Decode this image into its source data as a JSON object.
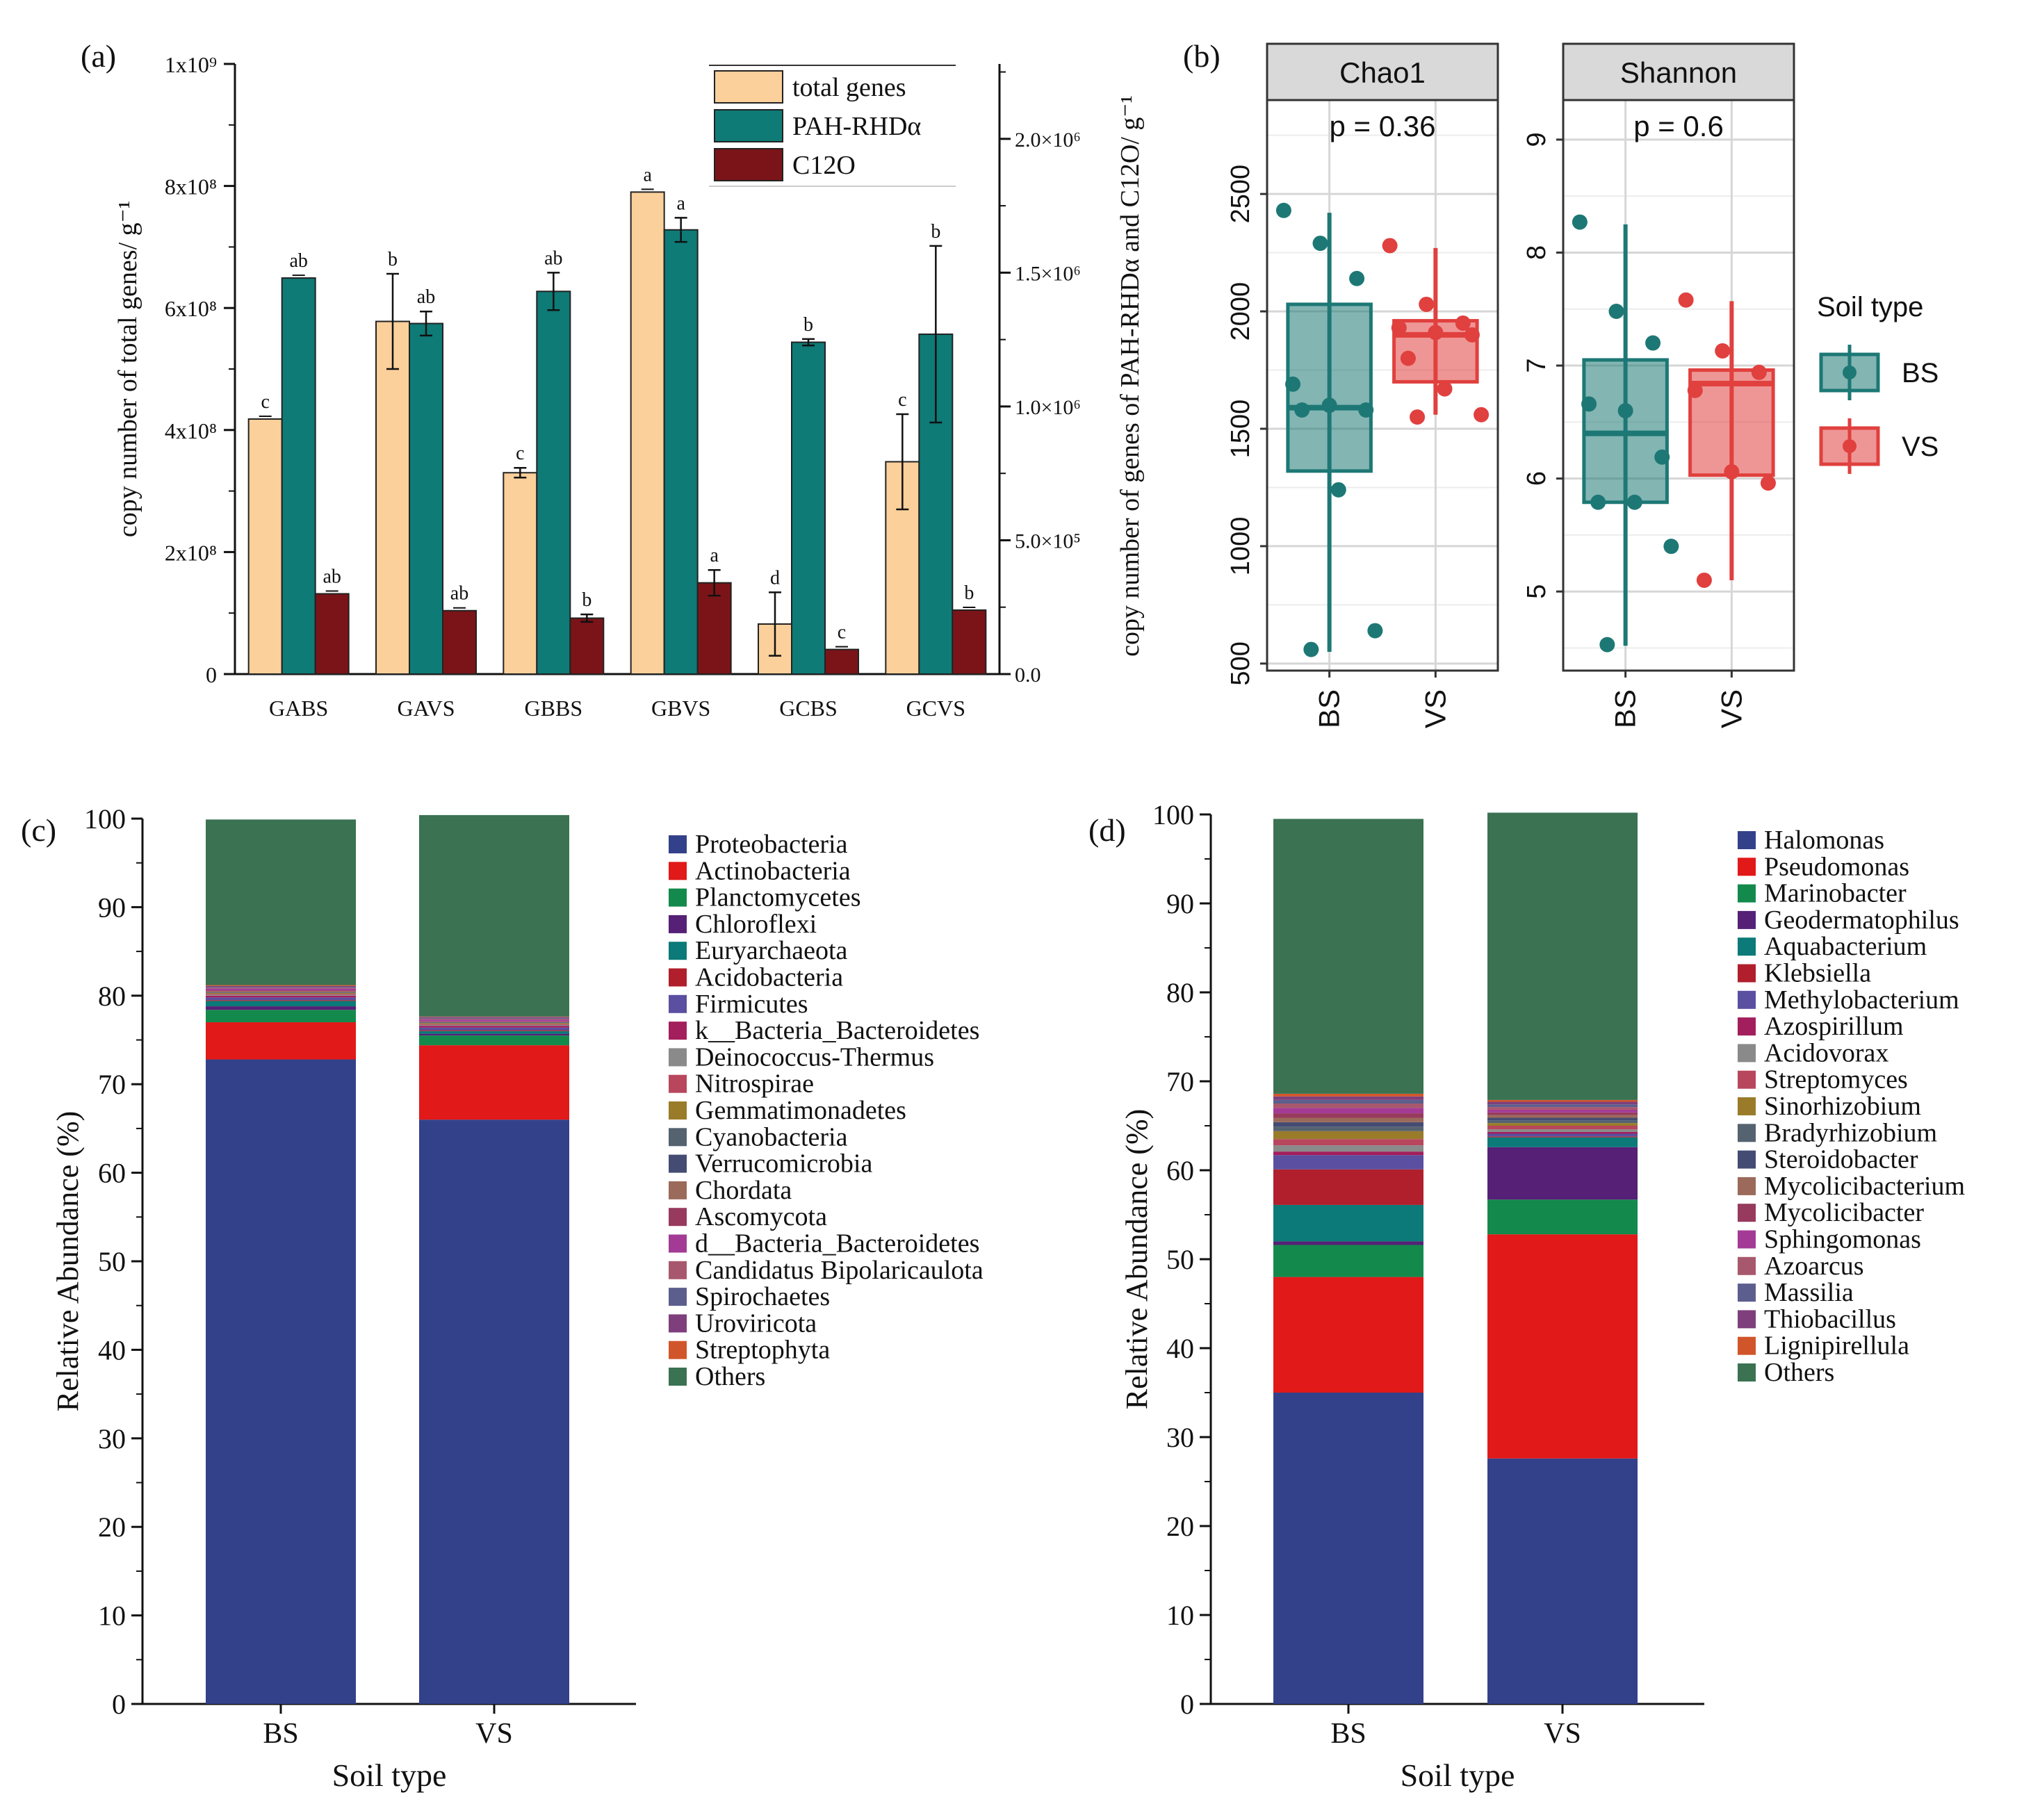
{
  "chart_data": [
    {
      "panel": "(a)",
      "type": "bar",
      "ylabel": "copy number of total genes/ g⁻¹",
      "y2label": "copy number of genes of PAH-RHDα and C12O/ g⁻¹",
      "ylim": [
        0,
        1000000000
      ],
      "y2lim": [
        0,
        2280000
      ],
      "yticks": [
        "0",
        "2x10⁸",
        "4x10⁸",
        "6x10⁸",
        "8x10⁸",
        "1x10⁹"
      ],
      "y2ticks": [
        "0.0",
        "5.0×10⁵",
        "1.0×10⁶",
        "1.5×10⁶",
        "2.0×10⁶"
      ],
      "categories": [
        "GABS",
        "GAVS",
        "GBBS",
        "GBVS",
        "GCBS",
        "GCVS"
      ],
      "series": [
        {
          "name": "total genes",
          "axis": "left",
          "color": "#fbd09b",
          "values": [
            418000000,
            578000000,
            330000000,
            790000000,
            82000000,
            348000000
          ],
          "errors": [
            0,
            78000000,
            8000000,
            0,
            52000000,
            78000000
          ],
          "letters": [
            "c",
            "b",
            "c",
            "a",
            "d",
            "c"
          ]
        },
        {
          "name": "PAH-RHDα",
          "axis": "right",
          "color": "#0e7b77",
          "values": [
            1480000,
            1310000,
            1430000,
            1660000,
            1240000,
            1270000
          ],
          "errors": [
            0,
            45000,
            70000,
            45000,
            12000,
            330000
          ],
          "letters": [
            "ab",
            "ab",
            "ab",
            "a",
            "b",
            "b"
          ]
        },
        {
          "name": "C12O",
          "axis": "right",
          "color": "#7b1418",
          "values": [
            300000,
            237000,
            209000,
            341000,
            92000,
            239000
          ],
          "errors": [
            0,
            0,
            14000,
            48000,
            0,
            0
          ],
          "letters": [
            "ab",
            "ab",
            "b",
            "a",
            "c",
            "b"
          ]
        }
      ]
    },
    {
      "panel": "(b)",
      "type": "box",
      "legend_title": "Soil type",
      "groups": [
        "BS",
        "VS"
      ],
      "colors": {
        "BS": "#1d7875",
        "VS": "#e0403e"
      },
      "subplots": [
        {
          "title": "Chao1",
          "p_text": "p = 0.36",
          "ylim": [
            470,
            2900
          ],
          "yticks": [
            500,
            1000,
            1500,
            2000,
            2500
          ],
          "boxes": {
            "BS": {
              "min": 550,
              "q1": 1320,
              "median": 1590,
              "q3": 2030,
              "max": 2420
            },
            "VS": {
              "min": 1560,
              "q1": 1700,
              "median": 1900,
              "q3": 1960,
              "max": 2270
            }
          },
          "points": {
            "BS": [
              2430,
              2290,
              2140,
              1690,
              1600,
              1580,
              1580,
              1240,
              640,
              560
            ],
            "VS": [
              2280,
              2030,
              1950,
              1930,
              1910,
              1900,
              1800,
              1670,
              1560,
              1550
            ]
          }
        },
        {
          "title": "Shannon",
          "p_text": "p = 0.6",
          "ylim": [
            4.3,
            9.35
          ],
          "yticks": [
            5,
            6,
            7,
            8,
            9
          ],
          "boxes": {
            "BS": {
              "min": 4.52,
              "q1": 5.79,
              "median": 6.4,
              "q3": 7.05,
              "max": 8.25
            },
            "VS": {
              "min": 5.1,
              "q1": 6.03,
              "median": 6.84,
              "q3": 6.96,
              "max": 7.57
            }
          },
          "points": {
            "BS": [
              8.27,
              7.48,
              7.2,
              6.66,
              6.6,
              6.19,
              5.79,
              5.79,
              5.4,
              4.53
            ],
            "VS": [
              7.58,
              7.13,
              6.94,
              6.78,
              6.06,
              5.96,
              5.1
            ]
          }
        }
      ]
    },
    {
      "panel": "(c)",
      "type": "stacked_bar",
      "xlabel": "Soil type",
      "ylabel": "Relative Abundance (%)",
      "ylim": [
        0,
        100
      ],
      "yticks": [
        0,
        10,
        20,
        30,
        40,
        50,
        60,
        70,
        80,
        90,
        100
      ],
      "categories": [
        "BS",
        "VS"
      ],
      "series": [
        {
          "name": "Proteobacteria",
          "color": "#33418a",
          "values": [
            72.8,
            66.0
          ]
        },
        {
          "name": "Actinobacteria",
          "color": "#e11919",
          "values": [
            4.2,
            8.4
          ]
        },
        {
          "name": "Planctomycetes",
          "color": "#138a4c",
          "values": [
            1.4,
            1.1
          ]
        },
        {
          "name": "Chloroflexi",
          "color": "#552076",
          "values": [
            0.4,
            0.2
          ]
        },
        {
          "name": "Euryarchaeota",
          "color": "#0b7a78",
          "values": [
            0.6,
            0.3
          ]
        },
        {
          "name": "Acidobacteria",
          "color": "#b01f2b",
          "values": [
            0.1,
            0.1
          ]
        },
        {
          "name": "Firmicutes",
          "color": "#5a4fa0",
          "values": [
            0.3,
            0.3
          ]
        },
        {
          "name": "k__Bacteria_Bacteroidetes",
          "color": "#a31e5c",
          "values": [
            0.2,
            0.2
          ]
        },
        {
          "name": "Deinococcus-Thermus",
          "color": "#8a8a8a",
          "values": [
            0.1,
            0.1
          ]
        },
        {
          "name": "Nitrospirae",
          "color": "#b8475e",
          "values": [
            0.1,
            0.1
          ]
        },
        {
          "name": "Gemmatimonadetes",
          "color": "#9a7b2a",
          "values": [
            0.1,
            0.1
          ]
        },
        {
          "name": "Cyanobacteria",
          "color": "#556270",
          "values": [
            0.05,
            0.05
          ]
        },
        {
          "name": "Verrucomicrobia",
          "color": "#444c73",
          "values": [
            0.05,
            0.05
          ]
        },
        {
          "name": "Chordata",
          "color": "#9b6a5a",
          "values": [
            0.1,
            0.05
          ]
        },
        {
          "name": "Ascomycota",
          "color": "#973a5d",
          "values": [
            0.1,
            0.05
          ]
        },
        {
          "name": "d__Bacteria_Bacteroidetes",
          "color": "#a33b96",
          "values": [
            0.2,
            0.2
          ]
        },
        {
          "name": "Candidatus Bipolaricaulota",
          "color": "#a8586d",
          "values": [
            0.1,
            0.1
          ]
        },
        {
          "name": "Spirochaetes",
          "color": "#5c5f8d",
          "values": [
            0.1,
            0.1
          ]
        },
        {
          "name": "Uroviricota",
          "color": "#7e3f7c",
          "values": [
            0.1,
            0.1
          ]
        },
        {
          "name": "Streptophyta",
          "color": "#d1552a",
          "values": [
            0.1,
            0.05
          ]
        },
        {
          "name": "Others",
          "color": "#3a7252",
          "values": [
            18.7,
            22.75
          ]
        }
      ]
    },
    {
      "panel": "(d)",
      "type": "stacked_bar",
      "xlabel": "Soil type",
      "ylabel": "Relative Abundance (%)",
      "ylim": [
        0,
        100
      ],
      "yticks": [
        0,
        10,
        20,
        30,
        40,
        50,
        60,
        70,
        80,
        90,
        100
      ],
      "categories": [
        "BS",
        "VS"
      ],
      "series": [
        {
          "name": "Halomonas",
          "color": "#33418a",
          "values": [
            35.0,
            27.6
          ]
        },
        {
          "name": "Pseudomonas",
          "color": "#e11919",
          "values": [
            13.0,
            25.2
          ]
        },
        {
          "name": "Marinobacter",
          "color": "#138a4c",
          "values": [
            3.6,
            3.9
          ]
        },
        {
          "name": "Geodermatophilus",
          "color": "#552076",
          "values": [
            0.4,
            5.9
          ]
        },
        {
          "name": "Aquabacterium",
          "color": "#0b7a78",
          "values": [
            4.1,
            1.1
          ]
        },
        {
          "name": "Klebsiella",
          "color": "#b01f2b",
          "values": [
            4.0,
            0.1
          ]
        },
        {
          "name": "Methylobacterium",
          "color": "#5a4fa0",
          "values": [
            1.6,
            0.3
          ]
        },
        {
          "name": "Azospirillum",
          "color": "#a31e5c",
          "values": [
            0.4,
            0.2
          ]
        },
        {
          "name": "Acidovorax",
          "color": "#8a8a8a",
          "values": [
            0.7,
            0.3
          ]
        },
        {
          "name": "Streptomyces",
          "color": "#b8475e",
          "values": [
            0.7,
            0.4
          ]
        },
        {
          "name": "Sinorhizobium",
          "color": "#9a7b2a",
          "values": [
            0.9,
            0.3
          ]
        },
        {
          "name": "Bradyrhizobium",
          "color": "#556270",
          "values": [
            0.5,
            0.3
          ]
        },
        {
          "name": "Steroidobacter",
          "color": "#444c73",
          "values": [
            0.5,
            0.3
          ]
        },
        {
          "name": "Mycolicibacterium",
          "color": "#9b6a5a",
          "values": [
            0.5,
            0.3
          ]
        },
        {
          "name": "Mycolicibacter",
          "color": "#973a5d",
          "values": [
            0.5,
            0.3
          ]
        },
        {
          "name": "Sphingomonas",
          "color": "#a33b96",
          "values": [
            0.6,
            0.3
          ]
        },
        {
          "name": "Azoarcus",
          "color": "#a8586d",
          "values": [
            0.5,
            0.3
          ]
        },
        {
          "name": "Massilia",
          "color": "#5c5f8d",
          "values": [
            0.4,
            0.3
          ]
        },
        {
          "name": "Thiobacillus",
          "color": "#7e3f7c",
          "values": [
            0.4,
            0.3
          ]
        },
        {
          "name": "Lignipirellula",
          "color": "#d1552a",
          "values": [
            0.3,
            0.2
          ]
        },
        {
          "name": "Others",
          "color": "#3a7252",
          "values": [
            30.9,
            32.3
          ]
        }
      ]
    }
  ]
}
